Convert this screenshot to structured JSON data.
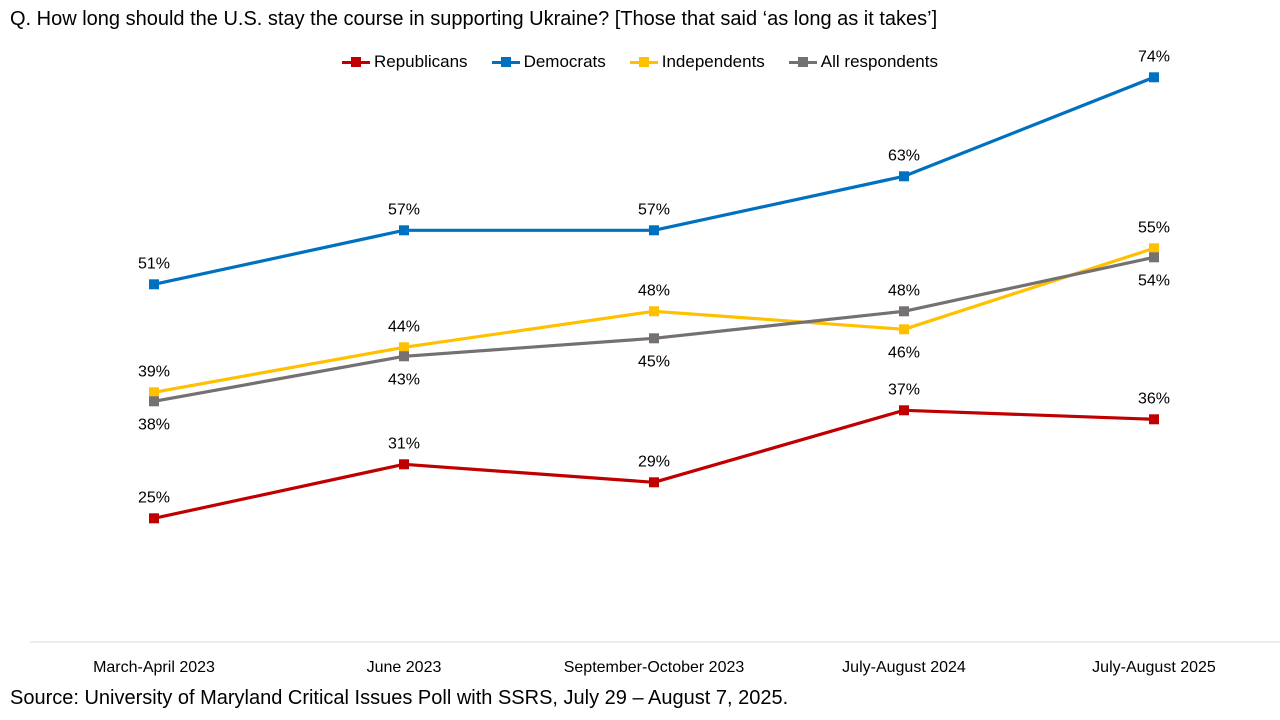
{
  "chart_data": {
    "type": "line",
    "title": "Q. How long should the U.S. stay the course in supporting Ukraine? [Those that said ‘as long as it takes’]",
    "categories": [
      "March-April 2023",
      "June 2023",
      "September-October 2023",
      "July-August 2024",
      "July-August 2025"
    ],
    "series": [
      {
        "name": "Republicans",
        "color": "#C00000",
        "values": [
          25,
          31,
          29,
          37,
          36
        ],
        "labels": [
          "25%",
          "31%",
          "29%",
          "37%",
          "36%"
        ],
        "label_pos": [
          "above",
          "above",
          "above",
          "above",
          "above"
        ]
      },
      {
        "name": "Democrats",
        "color": "#0070C0",
        "values": [
          51,
          57,
          57,
          63,
          74
        ],
        "labels": [
          "51%",
          "57%",
          "57%",
          "63%",
          "74%"
        ],
        "label_pos": [
          "above",
          "above",
          "above",
          "above",
          "above"
        ]
      },
      {
        "name": "Independents",
        "color": "#FFC000",
        "values": [
          39,
          44,
          48,
          46,
          55
        ],
        "labels": [
          "39%",
          "44%",
          "48%",
          "46%",
          "55%"
        ],
        "label_pos": [
          "above",
          "above",
          "above",
          "below",
          "above"
        ]
      },
      {
        "name": "All respondents",
        "color": "#767171",
        "values": [
          38,
          43,
          45,
          48,
          54
        ],
        "labels": [
          "38%",
          "43%",
          "45%",
          "48%",
          "54%"
        ],
        "label_pos": [
          "below",
          "below",
          "below",
          "above",
          "below"
        ]
      }
    ],
    "ylim": [
      0,
      80
    ],
    "xlabel": "",
    "ylabel": "",
    "grid": false,
    "legend": "top-center"
  },
  "footer": {
    "source": "Source: University of Maryland Critical Issues Poll with SSRS, July 29 – August 7, 2025."
  }
}
